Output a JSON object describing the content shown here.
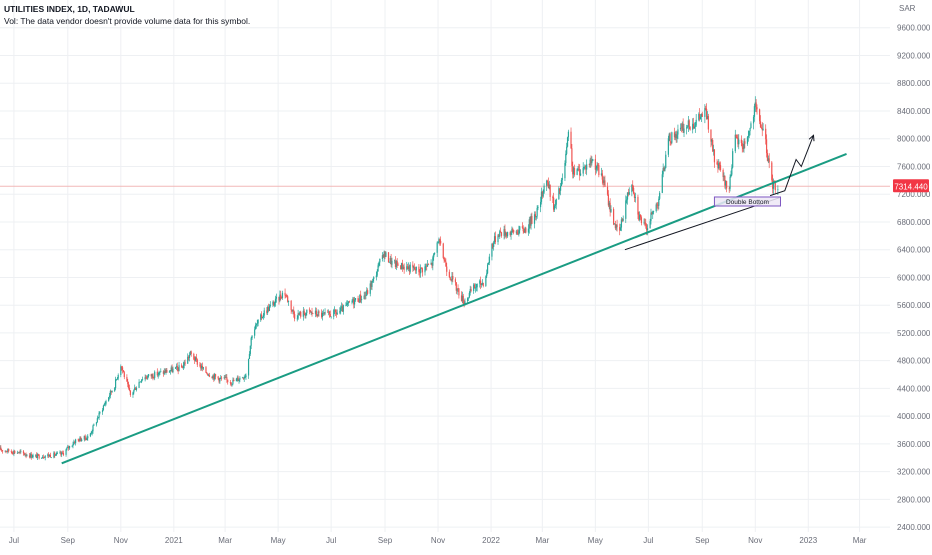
{
  "header": {
    "title": "UTILITIES INDEX, 1D, TADAWUL",
    "vol_note": "Vol: The data vendor doesn't provide volume data for this symbol."
  },
  "currency": "SAR",
  "price_label": "7314.440",
  "colors": {
    "up": "#26a69a",
    "down": "#ef5350",
    "trendline": "#1a9c83",
    "price_line": "#f2b8b8",
    "price_label_bg": "#f23645",
    "grid": "#eef0f3",
    "axis_text": "#6a6d78",
    "annotation": "#131722",
    "box_border": "#7e57c2",
    "box_fill": "#ede7f6"
  },
  "chart_data": {
    "type": "candlestick",
    "symbol": "UTILITIES INDEX",
    "interval": "1D",
    "exchange": "TADAWUL",
    "x_range": [
      "2020-06-15",
      "2023-04-05"
    ],
    "y_range": [
      2330,
      10000
    ],
    "y_ticks": [
      "9600.000",
      "9200.000",
      "8800.000",
      "8400.000",
      "8000.000",
      "7600.000",
      "7200.000",
      "6800.000",
      "6400.000",
      "6000.000",
      "5600.000",
      "5200.000",
      "4800.000",
      "4400.000",
      "4000.000",
      "3600.000",
      "3200.000",
      "2800.000",
      "2400.000"
    ],
    "y_tick_values": [
      9600,
      9200,
      8800,
      8400,
      8000,
      7600,
      7200,
      6800,
      6400,
      6000,
      5600,
      5200,
      4800,
      4400,
      4000,
      3600,
      3200,
      2800,
      2400
    ],
    "x_ticks": [
      {
        "label": "Jul",
        "date": "2020-07-01"
      },
      {
        "label": "Sep",
        "date": "2020-09-01"
      },
      {
        "label": "Nov",
        "date": "2020-11-01"
      },
      {
        "label": "2021",
        "date": "2021-01-01"
      },
      {
        "label": "Mar",
        "date": "2021-03-01"
      },
      {
        "label": "May",
        "date": "2021-05-01"
      },
      {
        "label": "Jul",
        "date": "2021-07-01"
      },
      {
        "label": "Sep",
        "date": "2021-09-01"
      },
      {
        "label": "Nov",
        "date": "2021-11-01"
      },
      {
        "label": "2022",
        "date": "2022-01-01"
      },
      {
        "label": "Mar",
        "date": "2022-03-01"
      },
      {
        "label": "May",
        "date": "2022-05-01"
      },
      {
        "label": "Jul",
        "date": "2022-07-01"
      },
      {
        "label": "Sep",
        "date": "2022-09-01"
      },
      {
        "label": "Nov",
        "date": "2022-11-01"
      },
      {
        "label": "2023",
        "date": "2023-01-01"
      },
      {
        "label": "Mar",
        "date": "2023-03-01"
      }
    ],
    "last_price": 7314.44,
    "price_path": [
      [
        "2020-06-15",
        3520
      ],
      [
        "2020-07-05",
        3480
      ],
      [
        "2020-07-25",
        3420
      ],
      [
        "2020-08-15",
        3440
      ],
      [
        "2020-08-25",
        3450
      ],
      [
        "2020-09-10",
        3650
      ],
      [
        "2020-09-25",
        3700
      ],
      [
        "2020-10-10",
        4100
      ],
      [
        "2020-10-25",
        4450
      ],
      [
        "2020-11-01",
        4750
      ],
      [
        "2020-11-12",
        4300
      ],
      [
        "2020-11-25",
        4550
      ],
      [
        "2020-12-10",
        4600
      ],
      [
        "2020-12-25",
        4650
      ],
      [
        "2021-01-10",
        4700
      ],
      [
        "2021-01-20",
        4900
      ],
      [
        "2021-02-05",
        4650
      ],
      [
        "2021-02-20",
        4550
      ],
      [
        "2021-03-10",
        4500
      ],
      [
        "2021-03-25",
        4600
      ],
      [
        "2021-04-01",
        5200
      ],
      [
        "2021-04-15",
        5500
      ],
      [
        "2021-04-28",
        5650
      ],
      [
        "2021-05-08",
        5800
      ],
      [
        "2021-05-20",
        5450
      ],
      [
        "2021-06-05",
        5500
      ],
      [
        "2021-06-25",
        5450
      ],
      [
        "2021-07-10",
        5500
      ],
      [
        "2021-07-25",
        5650
      ],
      [
        "2021-08-10",
        5750
      ],
      [
        "2021-08-20",
        6000
      ],
      [
        "2021-08-30",
        6350
      ],
      [
        "2021-09-10",
        6200
      ],
      [
        "2021-09-25",
        6150
      ],
      [
        "2021-10-10",
        6100
      ],
      [
        "2021-10-25",
        6200
      ],
      [
        "2021-11-01",
        6550
      ],
      [
        "2021-11-12",
        6100
      ],
      [
        "2021-11-22",
        5850
      ],
      [
        "2021-12-01",
        5650
      ],
      [
        "2021-12-12",
        5850
      ],
      [
        "2021-12-25",
        5950
      ],
      [
        "2022-01-01",
        6450
      ],
      [
        "2022-01-10",
        6650
      ],
      [
        "2022-01-25",
        6650
      ],
      [
        "2022-02-10",
        6700
      ],
      [
        "2022-02-25",
        7000
      ],
      [
        "2022-03-05",
        7450
      ],
      [
        "2022-03-15",
        7000
      ],
      [
        "2022-03-25",
        7450
      ],
      [
        "2022-04-01",
        8150
      ],
      [
        "2022-04-05",
        7500
      ],
      [
        "2022-04-15",
        7550
      ],
      [
        "2022-04-28",
        7700
      ],
      [
        "2022-05-10",
        7400
      ],
      [
        "2022-05-20",
        6900
      ],
      [
        "2022-05-28",
        6600
      ],
      [
        "2022-06-05",
        7100
      ],
      [
        "2022-06-12",
        7400
      ],
      [
        "2022-06-20",
        6900
      ],
      [
        "2022-06-28",
        6700
      ],
      [
        "2022-07-05",
        6900
      ],
      [
        "2022-07-12",
        7100
      ],
      [
        "2022-07-25",
        8000
      ],
      [
        "2022-08-10",
        8150
      ],
      [
        "2022-08-25",
        8250
      ],
      [
        "2022-09-05",
        8400
      ],
      [
        "2022-09-15",
        7700
      ],
      [
        "2022-09-25",
        7450
      ],
      [
        "2022-10-01",
        7200
      ],
      [
        "2022-10-08",
        8000
      ],
      [
        "2022-10-18",
        7900
      ],
      [
        "2022-10-25",
        8100
      ],
      [
        "2022-11-01",
        8450
      ],
      [
        "2022-11-05",
        8300
      ],
      [
        "2022-11-12",
        8000
      ],
      [
        "2022-11-20",
        7350
      ],
      [
        "2022-11-27",
        7300
      ]
    ],
    "annotations": {
      "trendline": {
        "from": [
          "2020-08-25",
          3320
        ],
        "to": [
          "2023-02-14",
          7780
        ]
      },
      "support_line": {
        "from": [
          "2022-06-04",
          6400
        ],
        "to": [
          "2022-11-29",
          7150
        ]
      },
      "double_bottom_box": {
        "label": "Double Bottom",
        "from": [
          "2022-09-15",
          7160
        ],
        "to": [
          "2022-11-30",
          7030
        ]
      },
      "projection_path": [
        [
          "2022-11-18",
          7180
        ],
        [
          "2022-12-05",
          7250
        ],
        [
          "2022-12-18",
          7700
        ],
        [
          "2022-12-24",
          7600
        ],
        [
          "2023-01-07",
          8050
        ]
      ]
    }
  }
}
